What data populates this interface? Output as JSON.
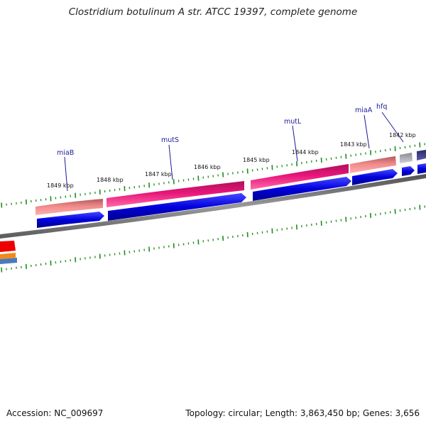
{
  "title": "Clostridium botulinum A str. ATCC 19397, complete genome",
  "footer": {
    "accession": "Accession: NC_009697",
    "summary": "Topology: circular; Length: 3,863,450 bp; Genes: 3,656"
  },
  "scale_labels": [
    "1849 kbp",
    "1848 kbp",
    "1847 kbp",
    "1846 kbp",
    "1845 kbp",
    "1844 kbp",
    "1843 kbp",
    "1842 kbp"
  ],
  "gene_labels": [
    "miaB",
    "mutS",
    "mutL",
    "miaA",
    "hfq"
  ],
  "colors": {
    "backbone": "#808080",
    "cds_blue": "#0000dd",
    "cog_pink": "#e8157a",
    "cog_salmon": "#f08a8a",
    "cog_gray": "#b0b0b8",
    "cog_navy": "#3c3c8c",
    "tick_green": "#1e8c1e",
    "label_blue": "#1a1a9a"
  }
}
